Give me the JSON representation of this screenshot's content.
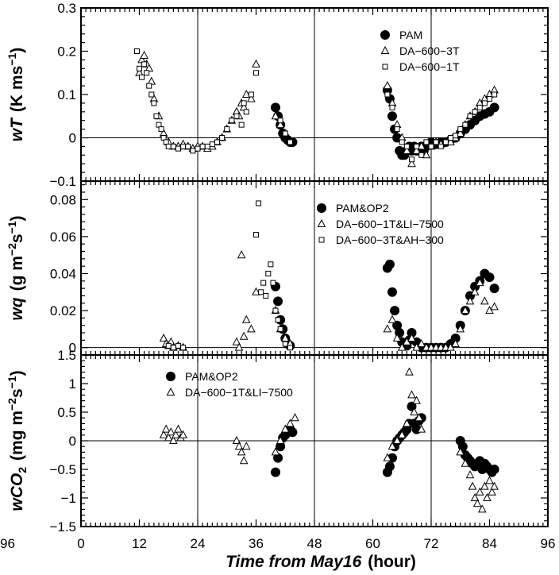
{
  "chart_data": [
    {
      "type": "scatter",
      "ylabel_var": "wT",
      "ylabel_units": "(K ms",
      "ylabel_sup": "−1",
      "ylabel_end": ")",
      "ylim": [
        -0.1,
        0.3
      ],
      "yticks": [
        "0.3",
        "0.2",
        "0.1",
        "0",
        "−0.1"
      ],
      "ytick_values": [
        0.3,
        0.2,
        0.1,
        0,
        -0.1
      ],
      "series": [
        {
          "name": "PAM",
          "marker": "filled-circle",
          "x": [
            40,
            40.5,
            41,
            41.5,
            42,
            42.5,
            43,
            43.5,
            63,
            63.5,
            64,
            64.5,
            65,
            65.5,
            66,
            66.5,
            67,
            67.5,
            68,
            68.5,
            69,
            69.5,
            70,
            70.5,
            71,
            72,
            73,
            74,
            75,
            76,
            77,
            78,
            79,
            80,
            81,
            82,
            83,
            84,
            85
          ],
          "y": [
            0.07,
            0.05,
            0.03,
            0.01,
            0.0,
            -0.005,
            -0.01,
            -0.01,
            0.11,
            0.09,
            0.05,
            0.02,
            0.0,
            -0.03,
            -0.04,
            -0.04,
            -0.03,
            -0.02,
            -0.03,
            -0.02,
            -0.03,
            -0.025,
            -0.02,
            -0.03,
            -0.02,
            -0.01,
            -0.015,
            -0.01,
            -0.01,
            -0.005,
            0.0,
            0.01,
            0.02,
            0.03,
            0.04,
            0.05,
            0.055,
            0.06,
            0.07
          ]
        },
        {
          "name": "DA−600−3T",
          "marker": "triangle",
          "x": [
            12,
            12.5,
            13,
            13.5,
            14,
            14.5,
            15,
            16,
            17,
            18,
            19,
            20,
            21,
            22,
            23,
            24,
            25,
            26,
            27,
            28,
            29,
            30,
            31,
            32,
            32.5,
            33,
            33.5,
            34,
            35,
            36,
            40,
            41,
            42,
            63,
            64,
            65,
            66,
            67,
            68,
            69,
            70,
            71,
            72,
            73,
            74,
            75,
            76,
            77,
            78,
            79,
            80,
            81,
            82,
            83,
            84,
            85
          ],
          "y": [
            0.15,
            0.18,
            0.19,
            0.17,
            0.16,
            0.13,
            0.09,
            0.05,
            0.01,
            -0.01,
            -0.02,
            -0.02,
            -0.015,
            -0.02,
            -0.025,
            -0.02,
            -0.02,
            -0.025,
            -0.02,
            -0.01,
            0.0,
            0.02,
            0.04,
            0.06,
            0.05,
            0.08,
            0.07,
            0.1,
            0.09,
            0.17,
            0.05,
            0.03,
            0.01,
            0.12,
            0.08,
            0.03,
            0.0,
            -0.03,
            -0.06,
            -0.03,
            -0.02,
            -0.04,
            -0.02,
            -0.01,
            -0.015,
            -0.01,
            -0.01,
            0.0,
            0.01,
            0.03,
            0.05,
            0.06,
            0.08,
            0.09,
            0.1,
            0.11
          ]
        },
        {
          "name": "DA−600−1T",
          "marker": "open-square",
          "x": [
            11.5,
            12,
            12.5,
            13,
            13.5,
            14,
            14.5,
            15,
            15.5,
            16,
            16.5,
            17,
            17.5,
            18,
            19,
            20,
            21,
            22,
            23,
            24,
            25,
            26,
            27,
            28,
            29,
            30,
            31,
            32,
            33,
            33.5,
            34,
            35,
            36,
            41,
            42,
            43,
            63,
            64,
            65,
            66,
            67,
            68,
            69,
            70,
            71,
            72,
            73,
            74,
            75,
            76,
            77,
            78,
            79,
            80,
            81,
            82,
            83,
            84,
            85
          ],
          "y": [
            0.2,
            0.16,
            0.14,
            0.17,
            0.15,
            0.12,
            0.1,
            0.08,
            0.05,
            0.03,
            0.02,
            0.0,
            -0.01,
            -0.02,
            -0.02,
            -0.025,
            -0.02,
            -0.02,
            -0.03,
            -0.025,
            -0.02,
            -0.02,
            -0.015,
            -0.01,
            0.0,
            0.02,
            0.04,
            0.05,
            0.03,
            0.08,
            0.06,
            0.1,
            0.15,
            0.04,
            0.01,
            -0.01,
            0.1,
            0.07,
            0.02,
            -0.01,
            -0.02,
            -0.05,
            -0.02,
            -0.04,
            -0.01,
            -0.02,
            -0.01,
            -0.02,
            -0.01,
            0.0,
            0.005,
            0.02,
            0.03,
            0.05,
            0.06,
            0.07,
            0.08,
            0.09,
            0.1
          ]
        }
      ]
    },
    {
      "type": "scatter",
      "ylabel_var": "wq",
      "ylabel_units": "(g m",
      "ylabel_sup": "−2",
      "ylabel_mid": "s",
      "ylabel_sup2": "−1",
      "ylabel_end": ")",
      "ylim": [
        -0.004,
        0.09
      ],
      "yticks": [
        "0.08",
        "0.06",
        "0.04",
        "0.02",
        "0"
      ],
      "ytick_values": [
        0.08,
        0.06,
        0.04,
        0.02,
        0
      ],
      "series": [
        {
          "name": "PAM&OP2",
          "marker": "filled-circle",
          "x": [
            40,
            40.5,
            41,
            41.5,
            42,
            42.5,
            43,
            63,
            63.5,
            64,
            64.5,
            65,
            65.5,
            66,
            66.5,
            67,
            67.5,
            68,
            69,
            70,
            71,
            72,
            73,
            74,
            75,
            76,
            77,
            78,
            79,
            80,
            81,
            82,
            83,
            84,
            85
          ],
          "y": [
            0.033,
            0.025,
            0.015,
            0.01,
            0.005,
            0.002,
            0.001,
            0.043,
            0.045,
            0.03,
            0.02,
            0.012,
            0.008,
            0.003,
            0.002,
            0.001,
            0.004,
            0.008,
            0.003,
            0.0,
            0.0,
            0.0,
            0.0,
            0.0,
            0.0,
            0.002,
            0.005,
            0.012,
            0.02,
            0.028,
            0.033,
            0.036,
            0.04,
            0.038,
            0.032
          ]
        },
        {
          "name": "DA−600−1T&LI−7500",
          "marker": "triangle",
          "x": [
            17,
            17.5,
            18,
            18.5,
            19,
            20,
            21,
            32,
            32.5,
            33,
            33.5,
            34,
            35,
            36,
            40,
            41,
            42,
            43,
            63,
            64,
            65,
            66,
            67,
            68,
            69,
            70,
            71,
            72,
            73,
            74,
            75,
            76,
            77,
            78,
            79,
            80,
            81,
            82,
            83,
            84,
            85
          ],
          "y": [
            0.005,
            0.002,
            0.001,
            0.003,
            0.0,
            0.001,
            0.0,
            0.003,
            0.0,
            0.05,
            0.006,
            0.015,
            0.01,
            0.03,
            0.02,
            0.01,
            0.005,
            0.002,
            0.01,
            0.015,
            0.005,
            0.0,
            0.003,
            0.005,
            0.0,
            0.002,
            0.0,
            0.0,
            0.0,
            0.0,
            0.0,
            0.0,
            0.002,
            0.01,
            0.02,
            0.025,
            0.03,
            0.035,
            0.025,
            0.02,
            0.022
          ]
        },
        {
          "name": "DA−600−3T&AH−300",
          "marker": "open-square",
          "x": [
            18,
            19,
            20,
            21,
            36,
            36.5,
            37,
            37.5,
            38,
            38.5,
            39,
            39.5,
            40,
            40.5,
            41,
            42,
            43
          ],
          "y": [
            0.001,
            0.0,
            0.001,
            0.0,
            0.061,
            0.078,
            0.03,
            0.035,
            0.028,
            0.04,
            0.045,
            0.035,
            0.02,
            0.015,
            0.01,
            0.002,
            0.0
          ]
        }
      ]
    },
    {
      "type": "scatter",
      "ylabel_var": "wCO",
      "ylabel_sub": "2",
      "ylabel_units": "(mg m",
      "ylabel_sup": "−2",
      "ylabel_mid": "s",
      "ylabel_sup2": "−1",
      "ylabel_end": ")",
      "ylim": [
        -1.5,
        1.5
      ],
      "yticks": [
        "1.5",
        "1",
        "0.5",
        "0",
        "−0.5",
        "−1",
        "−1.5"
      ],
      "ytick_values": [
        1.5,
        1,
        0.5,
        0,
        -0.5,
        -1,
        -1.5
      ],
      "series": [
        {
          "name": "PAM&OP2",
          "marker": "filled-circle",
          "x": [
            40,
            40.5,
            41,
            41.5,
            42,
            42.5,
            43,
            43.5,
            63,
            63.5,
            64,
            64.5,
            65,
            65.5,
            66,
            66.5,
            67,
            67.5,
            68,
            68.5,
            69,
            69.5,
            70,
            78,
            78.5,
            79,
            79.5,
            80,
            80.5,
            81,
            81.5,
            82,
            82.5,
            83,
            83.5,
            84,
            84.5,
            85
          ],
          "y": [
            -0.55,
            -0.3,
            -0.1,
            0.05,
            0.1,
            0.15,
            0.2,
            0.15,
            -0.55,
            -0.45,
            -0.3,
            -0.1,
            0.0,
            0.05,
            0.1,
            0.15,
            0.2,
            0.3,
            0.6,
            0.3,
            0.2,
            0.35,
            0.4,
            0.0,
            -0.1,
            -0.25,
            -0.3,
            -0.35,
            -0.4,
            -0.45,
            -0.4,
            -0.35,
            -0.5,
            -0.4,
            -0.45,
            -0.5,
            -0.55,
            -0.5
          ]
        },
        {
          "name": "DA−600−1T&LI−7500",
          "marker": "triangle",
          "x": [
            17,
            17.5,
            18,
            18.5,
            19,
            19.5,
            20,
            20.5,
            21,
            32,
            32.5,
            33,
            33.5,
            34,
            40,
            41,
            42,
            43,
            44,
            63,
            64,
            65,
            66,
            67,
            67.5,
            68,
            68.5,
            69,
            69.5,
            70,
            78,
            79,
            80,
            80.5,
            81,
            81.5,
            82,
            82.5,
            83,
            83.5,
            84,
            84.5,
            85
          ],
          "y": [
            0.1,
            0.2,
            0.05,
            0.15,
            0.0,
            0.1,
            0.2,
            0.05,
            0.1,
            0.0,
            -0.1,
            -0.2,
            -0.35,
            -0.1,
            -0.2,
            0.0,
            0.2,
            0.3,
            0.4,
            -0.3,
            -0.1,
            0.0,
            0.1,
            0.3,
            1.2,
            0.8,
            0.5,
            0.7,
            0.4,
            0.2,
            -0.2,
            -0.4,
            -0.6,
            -0.8,
            -1.0,
            -1.1,
            -0.9,
            -1.2,
            -0.8,
            -1.0,
            -0.7,
            -0.9,
            -0.8
          ]
        }
      ]
    }
  ],
  "shared_x": {
    "xlabel_pre": "Time  from  May16",
    "xlabel_post": "(hour)",
    "xlim": [
      0,
      96
    ],
    "xticks": [
      "0",
      "12",
      "24",
      "36",
      "48",
      "60",
      "72",
      "84",
      "96"
    ],
    "xtick_values": [
      0,
      12,
      24,
      36,
      48,
      60,
      72,
      84,
      96
    ],
    "vlines": [
      24,
      48,
      72
    ],
    "left_edge_label": "96"
  }
}
